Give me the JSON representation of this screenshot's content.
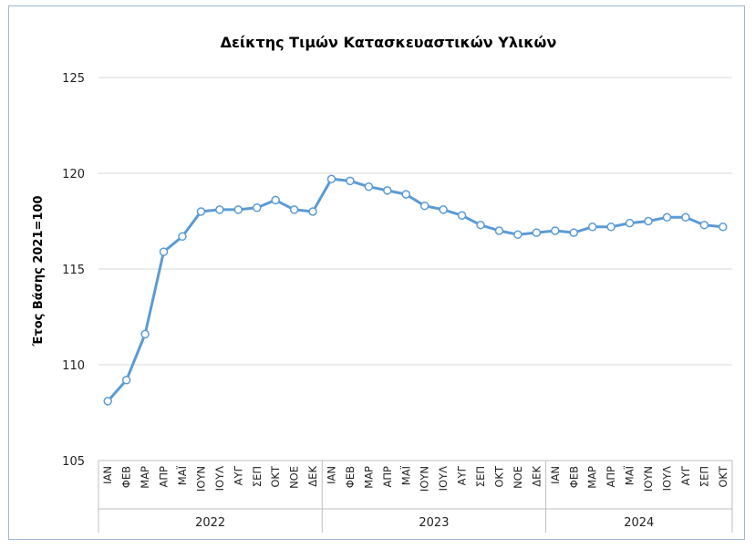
{
  "chart_data": {
    "type": "line",
    "title": "Δείκτης Τιμών Κατασκευαστικών Υλικών",
    "xlabel": "",
    "ylabel": "Έτος Βάσης 2021=100",
    "ylim": [
      105,
      125
    ],
    "yticks": [
      105,
      110,
      115,
      120,
      125
    ],
    "grid": true,
    "legend": "none",
    "groups": [
      {
        "label": "2022",
        "months": [
          "ΙΑΝ",
          "ΦΕΒ",
          "ΜΑΡ",
          "ΑΠΡ",
          "ΜΑΪ",
          "ΙΟΥΝ",
          "ΙΟΥΛ",
          "ΑΥΓ",
          "ΣΕΠ",
          "ΟΚΤ",
          "ΝΟΕ",
          "ΔΕΚ"
        ]
      },
      {
        "label": "2023",
        "months": [
          "ΙΑΝ",
          "ΦΕΒ",
          "ΜΑΡ",
          "ΑΠΡ",
          "ΜΑΪ",
          "ΙΟΥΝ",
          "ΙΟΥΛ",
          "ΑΥΓ",
          "ΣΕΠ",
          "ΟΚΤ",
          "ΝΟΕ",
          "ΔΕΚ"
        ]
      },
      {
        "label": "2024",
        "months": [
          "ΙΑΝ",
          "ΦΕΒ",
          "ΜΑΡ",
          "ΑΠΡ",
          "ΜΑΪ",
          "ΙΟΥΝ",
          "ΙΟΥΛ",
          "ΑΥΓ",
          "ΣΕΠ",
          "ΟΚΤ"
        ]
      }
    ],
    "series": [
      {
        "values": [
          108.1,
          109.2,
          111.6,
          115.9,
          116.7,
          118.0,
          118.1,
          118.1,
          118.2,
          118.6,
          118.1,
          118.0,
          119.7,
          119.6,
          119.3,
          119.1,
          118.9,
          118.3,
          118.1,
          117.8,
          117.3,
          117.0,
          116.8,
          116.9,
          117.0,
          116.9,
          117.2,
          117.2,
          117.4,
          117.5,
          117.7,
          117.7,
          117.3,
          117.2
        ],
        "color": "#5b9bd5"
      }
    ]
  }
}
